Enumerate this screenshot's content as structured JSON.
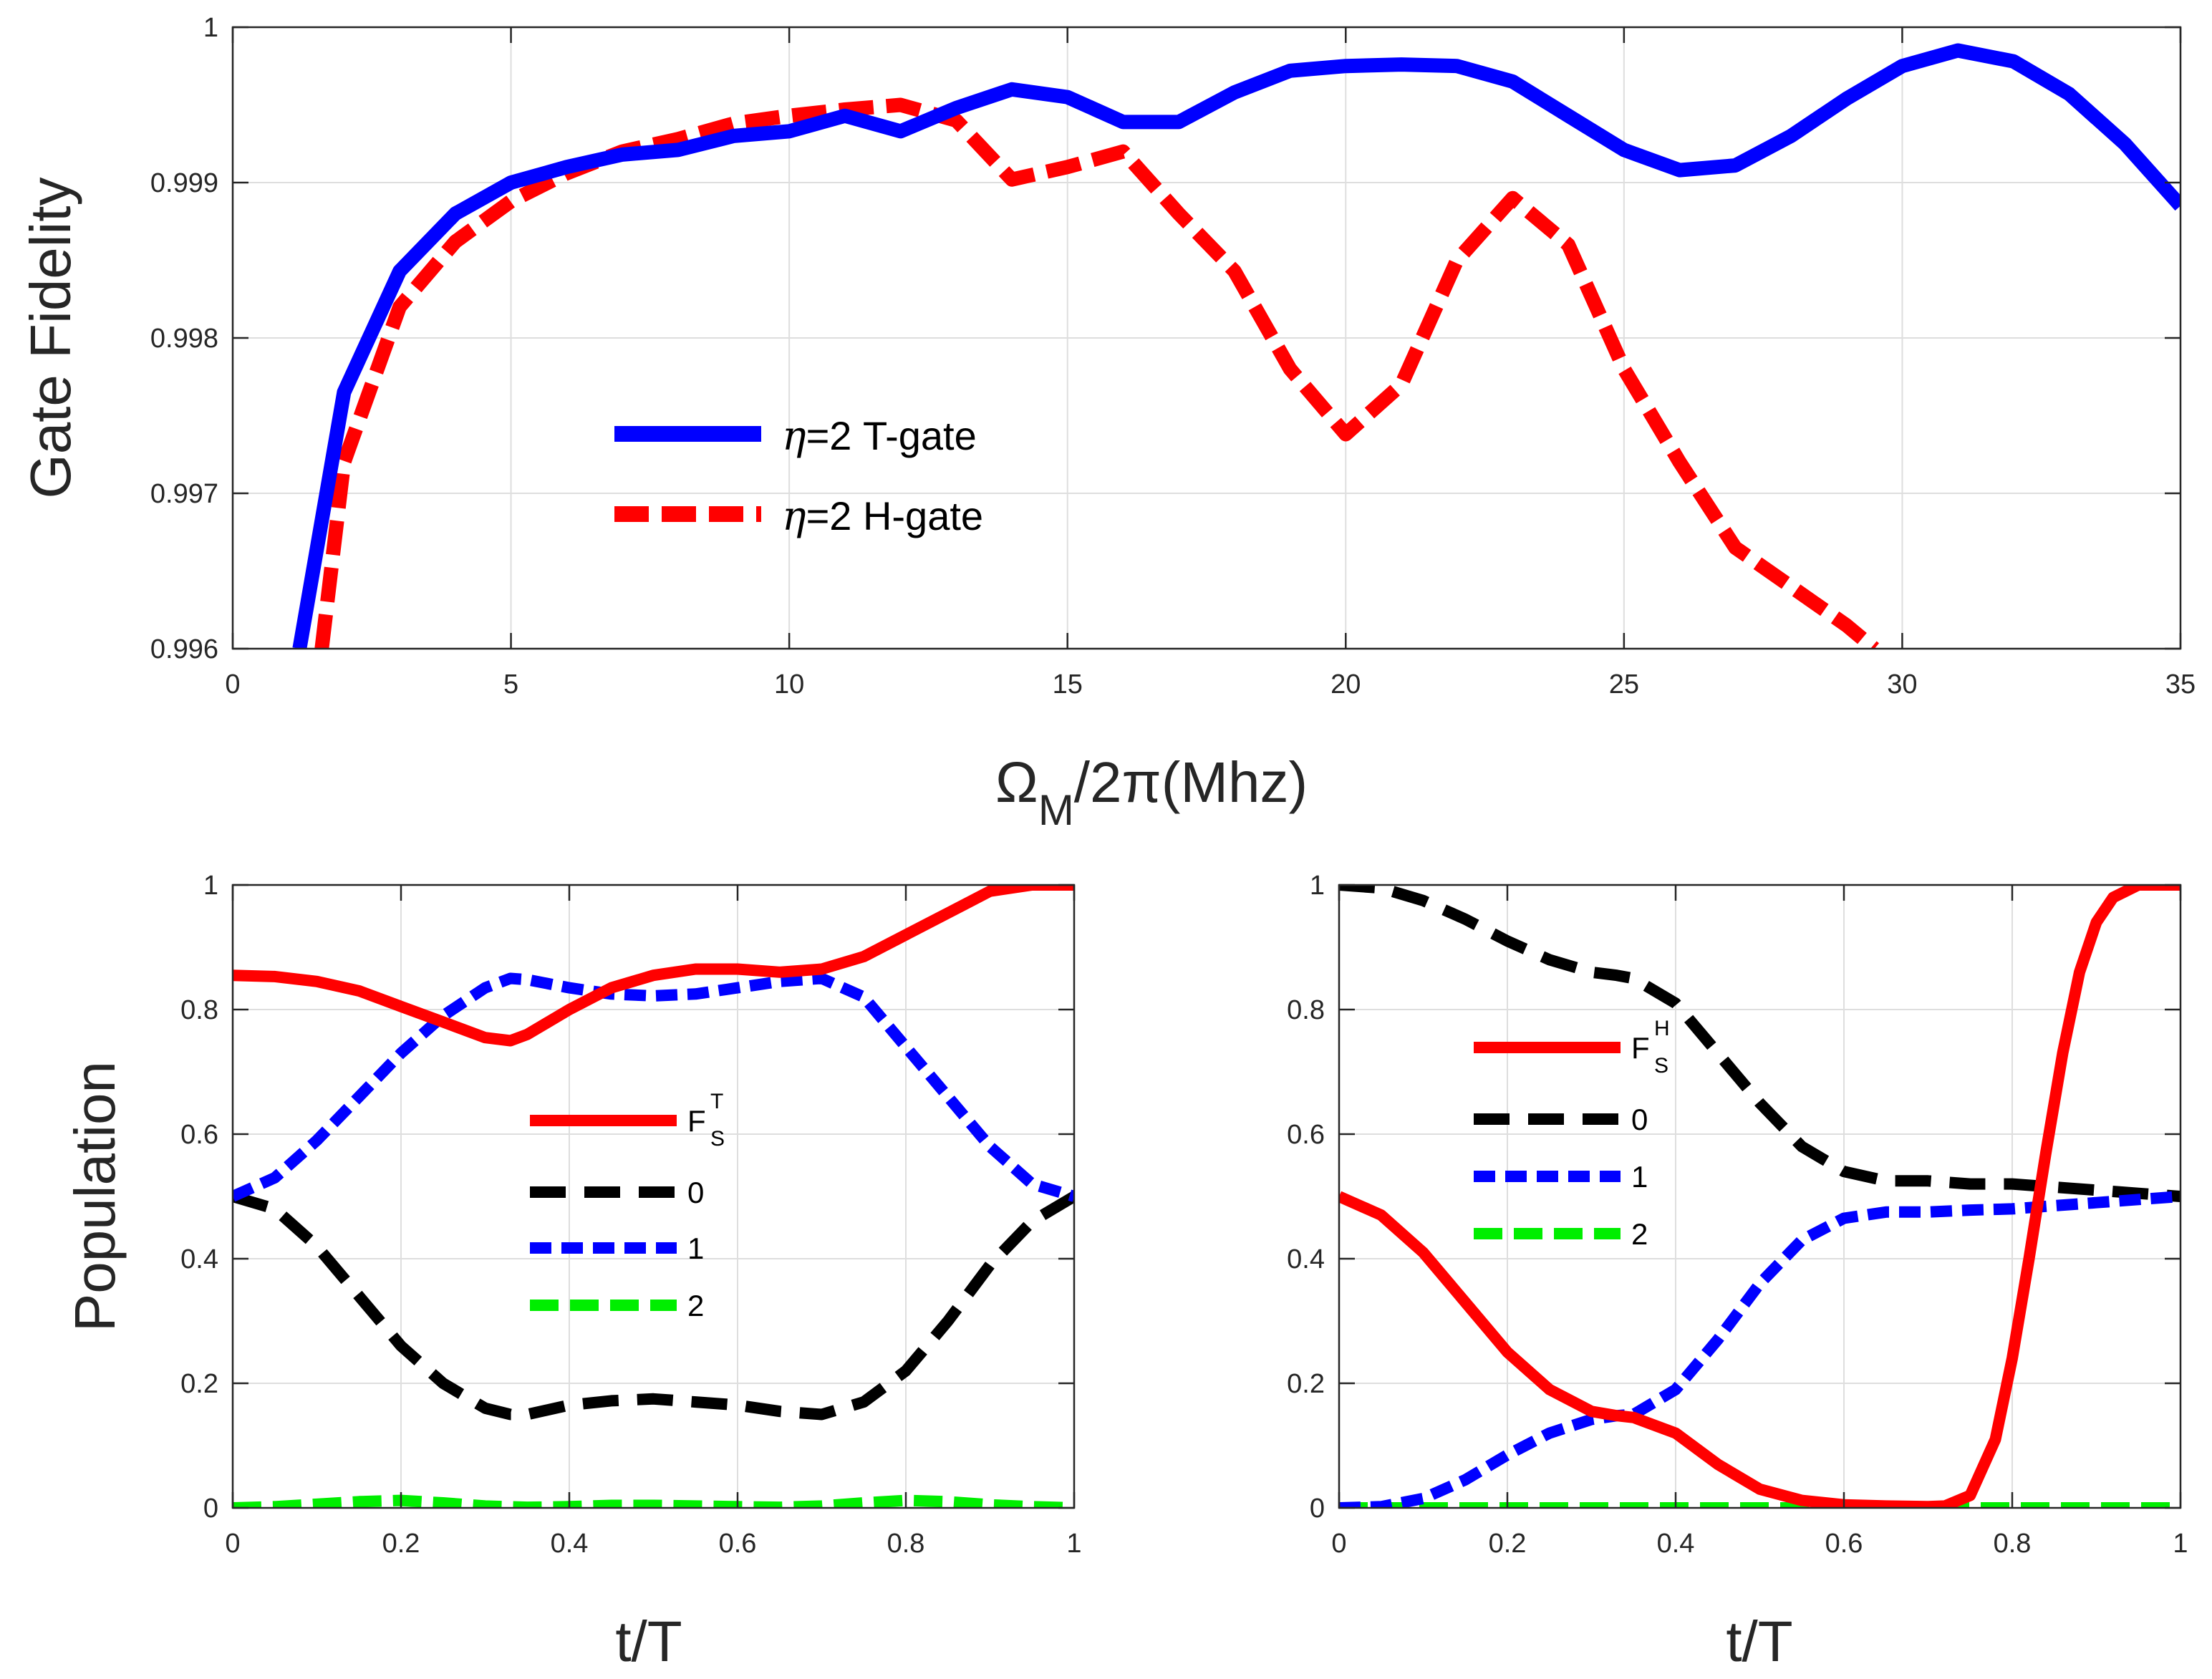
{
  "chart_data": [
    {
      "id": "top",
      "type": "line",
      "xlabel": "Ω",
      "xlabel_sub": "M",
      "xlabel_rest": "/2π(Mhz)",
      "ylabel": "Gate Fidelity",
      "xlim": [
        0,
        35
      ],
      "ylim": [
        0.996,
        1
      ],
      "xticks": [
        0,
        5,
        10,
        15,
        20,
        25,
        30,
        35
      ],
      "yticks": [
        0.996,
        0.997,
        0.998,
        0.999,
        1
      ],
      "ytick_labels": [
        "0.996",
        "0.997",
        "0.998",
        "0.999",
        "1"
      ],
      "grid": true,
      "legend_position": "center-left",
      "series": [
        {
          "name": "η=2 T-gate",
          "legend_symbol": "η",
          "legend_rest": "=2 T-gate",
          "color": "#0000ff",
          "style": "solid",
          "x": [
            1.2,
            2,
            3,
            4,
            5,
            6,
            7,
            8,
            9,
            10,
            11,
            12,
            13,
            14,
            15,
            16,
            17,
            18,
            19,
            20,
            21,
            22,
            23,
            24,
            25,
            26,
            27,
            28,
            29,
            30,
            31,
            32,
            33,
            34,
            35
          ],
          "y": [
            0.996,
            0.99765,
            0.99843,
            0.9988,
            0.999,
            0.9991,
            0.99918,
            0.99921,
            0.9993,
            0.99933,
            0.99943,
            0.99933,
            0.99948,
            0.9996,
            0.99955,
            0.99939,
            0.99939,
            0.99958,
            0.99972,
            0.99975,
            0.99976,
            0.99975,
            0.99965,
            0.99943,
            0.99921,
            0.99908,
            0.99911,
            0.9993,
            0.99954,
            0.99975,
            0.99985,
            0.99978,
            0.99957,
            0.99925,
            0.99885
          ]
        },
        {
          "name": "η=2 H-gate",
          "legend_symbol": "η",
          "legend_rest": "=2 H-gate",
          "color": "#ff0000",
          "style": "dashed",
          "x": [
            1.6,
            2,
            3,
            4,
            5,
            6,
            7,
            8,
            9,
            10,
            11,
            12,
            13,
            14,
            15,
            16,
            17,
            18,
            19,
            20,
            21,
            22,
            23,
            24,
            25,
            26,
            27,
            28,
            29,
            29.5
          ],
          "y": [
            0.996,
            0.9972,
            0.9982,
            0.99862,
            0.99888,
            0.99906,
            0.9992,
            0.99928,
            0.99938,
            0.99943,
            0.99947,
            0.9995,
            0.9994,
            0.99902,
            0.9991,
            0.9992,
            0.9988,
            0.99843,
            0.9978,
            0.99738,
            0.9977,
            0.9985,
            0.9989,
            0.9986,
            0.9978,
            0.9972,
            0.99665,
            0.9964,
            0.99615,
            0.996
          ]
        }
      ]
    },
    {
      "id": "bottom-left",
      "type": "line",
      "xlabel": "t/T",
      "ylabel": "Population",
      "xlim": [
        0,
        1
      ],
      "ylim": [
        0,
        1
      ],
      "xticks": [
        0,
        0.2,
        0.4,
        0.6,
        0.8,
        1
      ],
      "xtick_labels": [
        "0",
        "0.2",
        "0.4",
        "0.6",
        "0.8",
        "1"
      ],
      "yticks": [
        0,
        0.2,
        0.4,
        0.6,
        0.8,
        1
      ],
      "ytick_labels": [
        "0",
        "0.2",
        "0.4",
        "0.6",
        "0.8",
        "1"
      ],
      "grid": true,
      "legend_position": "center",
      "series": [
        {
          "name": "F_S^T",
          "label_main": "F",
          "label_sub": "S",
          "label_sup": "T",
          "color": "#ff0000",
          "style": "solid",
          "x": [
            0,
            0.05,
            0.1,
            0.15,
            0.2,
            0.25,
            0.3,
            0.33,
            0.35,
            0.4,
            0.45,
            0.5,
            0.55,
            0.6,
            0.65,
            0.7,
            0.75,
            0.8,
            0.85,
            0.9,
            0.95,
            1
          ],
          "y": [
            0.855,
            0.853,
            0.845,
            0.83,
            0.805,
            0.78,
            0.755,
            0.75,
            0.76,
            0.8,
            0.835,
            0.855,
            0.865,
            0.865,
            0.86,
            0.865,
            0.885,
            0.92,
            0.955,
            0.99,
            1.0,
            1.0
          ]
        },
        {
          "name": "0",
          "color": "#000000",
          "style": "dashed",
          "x": [
            0,
            0.05,
            0.1,
            0.15,
            0.2,
            0.25,
            0.3,
            0.33,
            0.35,
            0.4,
            0.45,
            0.5,
            0.55,
            0.6,
            0.65,
            0.7,
            0.75,
            0.8,
            0.85,
            0.9,
            0.95,
            1
          ],
          "y": [
            0.5,
            0.48,
            0.42,
            0.34,
            0.26,
            0.2,
            0.16,
            0.15,
            0.15,
            0.165,
            0.172,
            0.175,
            0.17,
            0.165,
            0.155,
            0.15,
            0.17,
            0.22,
            0.3,
            0.39,
            0.46,
            0.5
          ]
        },
        {
          "name": "1",
          "color": "#0000ff",
          "style": "dashed",
          "x": [
            0,
            0.05,
            0.1,
            0.15,
            0.2,
            0.25,
            0.3,
            0.33,
            0.35,
            0.4,
            0.45,
            0.5,
            0.55,
            0.6,
            0.65,
            0.7,
            0.75,
            0.8,
            0.85,
            0.9,
            0.95,
            1
          ],
          "y": [
            0.5,
            0.53,
            0.59,
            0.66,
            0.73,
            0.79,
            0.835,
            0.85,
            0.848,
            0.835,
            0.825,
            0.822,
            0.825,
            0.835,
            0.845,
            0.85,
            0.82,
            0.74,
            0.66,
            0.58,
            0.52,
            0.5
          ]
        },
        {
          "name": "2",
          "color": "#00ee00",
          "style": "dashed",
          "x": [
            0,
            0.05,
            0.1,
            0.15,
            0.2,
            0.25,
            0.3,
            0.35,
            0.4,
            0.45,
            0.5,
            0.55,
            0.6,
            0.65,
            0.7,
            0.75,
            0.8,
            0.85,
            0.9,
            0.95,
            1
          ],
          "y": [
            0,
            0.002,
            0.006,
            0.01,
            0.012,
            0.008,
            0.003,
            0.001,
            0.002,
            0.004,
            0.004,
            0.003,
            0.002,
            0.001,
            0.003,
            0.008,
            0.012,
            0.01,
            0.005,
            0.002,
            0
          ]
        }
      ]
    },
    {
      "id": "bottom-right",
      "type": "line",
      "xlabel": "t/T",
      "ylabel": "",
      "xlim": [
        0,
        1
      ],
      "ylim": [
        0,
        1
      ],
      "xticks": [
        0,
        0.2,
        0.4,
        0.6,
        0.8,
        1
      ],
      "xtick_labels": [
        "0",
        "0.2",
        "0.4",
        "0.6",
        "0.8",
        "1"
      ],
      "yticks": [
        0,
        0.2,
        0.4,
        0.6,
        0.8,
        1
      ],
      "ytick_labels": [
        "0",
        "0.2",
        "0.4",
        "0.6",
        "0.8",
        "1"
      ],
      "grid": true,
      "legend_position": "top-left",
      "series": [
        {
          "name": "F_S^H",
          "label_main": "F",
          "label_sub": "S",
          "label_sup": "H",
          "color": "#ff0000",
          "style": "solid",
          "x": [
            0,
            0.05,
            0.1,
            0.15,
            0.2,
            0.25,
            0.3,
            0.33,
            0.35,
            0.4,
            0.45,
            0.5,
            0.55,
            0.6,
            0.65,
            0.7,
            0.72,
            0.75,
            0.78,
            0.8,
            0.82,
            0.84,
            0.86,
            0.88,
            0.9,
            0.92,
            0.95,
            1
          ],
          "y": [
            0.5,
            0.47,
            0.41,
            0.33,
            0.25,
            0.19,
            0.155,
            0.148,
            0.145,
            0.12,
            0.07,
            0.03,
            0.012,
            0.005,
            0.003,
            0.002,
            0.003,
            0.02,
            0.11,
            0.24,
            0.4,
            0.57,
            0.73,
            0.86,
            0.94,
            0.98,
            1.0,
            1.0
          ]
        },
        {
          "name": "0",
          "color": "#000000",
          "style": "dashed",
          "x": [
            0,
            0.05,
            0.1,
            0.15,
            0.2,
            0.25,
            0.3,
            0.33,
            0.35,
            0.4,
            0.45,
            0.5,
            0.55,
            0.6,
            0.65,
            0.7,
            0.75,
            0.8,
            0.85,
            0.9,
            0.95,
            1
          ],
          "y": [
            1.0,
            0.995,
            0.975,
            0.945,
            0.91,
            0.88,
            0.86,
            0.855,
            0.85,
            0.81,
            0.73,
            0.65,
            0.58,
            0.54,
            0.525,
            0.525,
            0.52,
            0.52,
            0.515,
            0.51,
            0.505,
            0.5
          ]
        },
        {
          "name": "1",
          "color": "#0000ff",
          "style": "dashed",
          "x": [
            0,
            0.05,
            0.1,
            0.15,
            0.2,
            0.25,
            0.3,
            0.33,
            0.35,
            0.4,
            0.45,
            0.5,
            0.55,
            0.6,
            0.65,
            0.7,
            0.75,
            0.8,
            0.85,
            0.9,
            0.95,
            1
          ],
          "y": [
            0.0,
            0.002,
            0.015,
            0.045,
            0.085,
            0.12,
            0.142,
            0.148,
            0.15,
            0.19,
            0.27,
            0.36,
            0.43,
            0.465,
            0.475,
            0.475,
            0.478,
            0.48,
            0.485,
            0.49,
            0.495,
            0.5
          ]
        },
        {
          "name": "2",
          "color": "#00ee00",
          "style": "dashed",
          "x": [
            0,
            0.25,
            0.5,
            0.75,
            1
          ],
          "y": [
            0,
            0,
            0,
            0,
            0
          ]
        }
      ]
    }
  ]
}
